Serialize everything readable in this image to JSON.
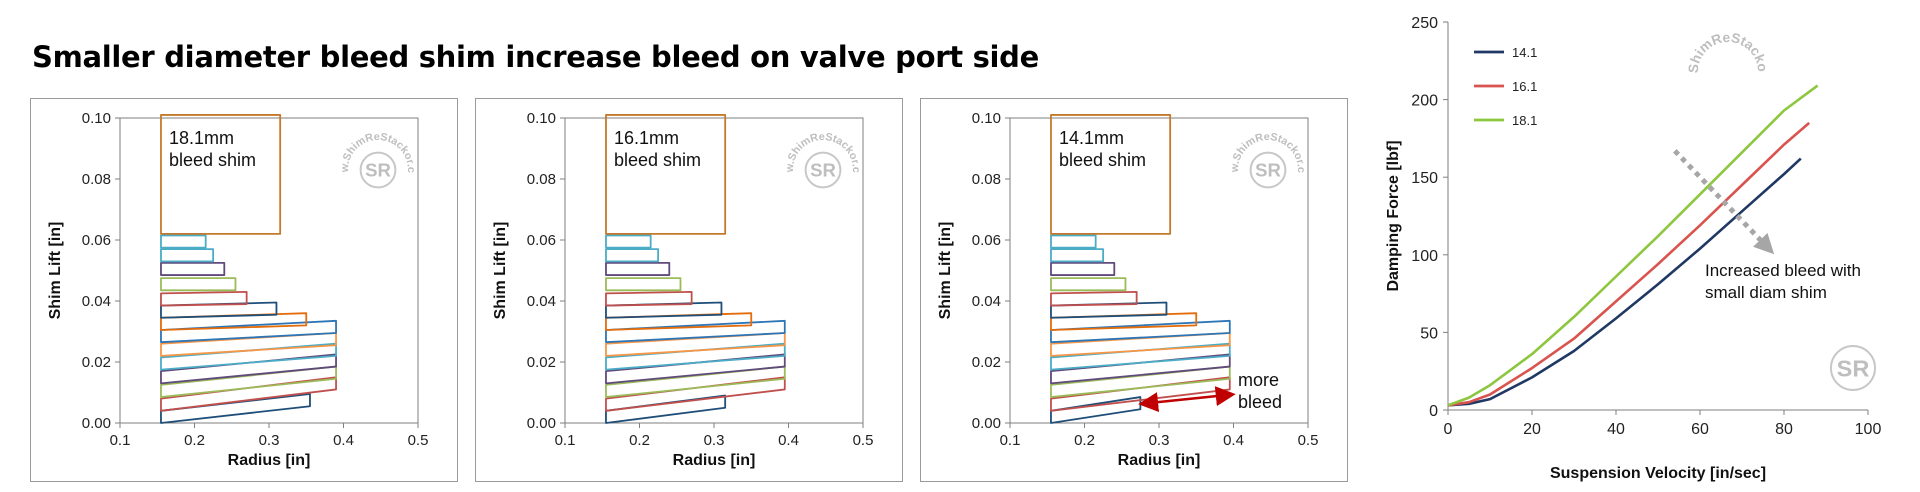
{
  "page": {
    "title": "Smaller diameter bleed shim increase bleed on valve port side"
  },
  "watermark": {
    "text": "www.ShimReStackor.com",
    "logo": "SR"
  },
  "chart_data": [
    {
      "type": "bar",
      "title": "",
      "annotation": "18.1mm bleed shim",
      "annotation_lines": [
        "18.1mm",
        "bleed shim"
      ],
      "xlabel": "Radius [in]",
      "ylabel": "Shim Lift [in]",
      "xlim": [
        0.1,
        0.5
      ],
      "ylim": [
        0,
        0.1
      ],
      "xticks": [
        "0.1",
        "0.2",
        "0.3",
        "0.4",
        "0.5"
      ],
      "yticks": [
        "0.00",
        "0.02",
        "0.04",
        "0.06",
        "0.08",
        "0.10"
      ],
      "inner_radius": 0.155,
      "shims": [
        {
          "r_out": 0.355,
          "y_in": 0.0,
          "y_out": 0.0055,
          "t": 0.004,
          "color": "#1f4e79"
        },
        {
          "r_out": 0.39,
          "y_in": 0.004,
          "y_out": 0.011,
          "t": 0.004,
          "color": "#c0504d"
        },
        {
          "r_out": 0.39,
          "y_in": 0.0085,
          "y_out": 0.0145,
          "t": 0.004,
          "color": "#9bbb59"
        },
        {
          "r_out": 0.39,
          "y_in": 0.013,
          "y_out": 0.0185,
          "t": 0.004,
          "color": "#604a7b"
        },
        {
          "r_out": 0.39,
          "y_in": 0.0175,
          "y_out": 0.022,
          "t": 0.004,
          "color": "#4bacc6"
        },
        {
          "r_out": 0.39,
          "y_in": 0.022,
          "y_out": 0.0255,
          "t": 0.004,
          "color": "#f79646"
        },
        {
          "r_out": 0.39,
          "y_in": 0.0265,
          "y_out": 0.0295,
          "t": 0.004,
          "color": "#2e75b6"
        },
        {
          "r_out": 0.35,
          "y_in": 0.0305,
          "y_out": 0.032,
          "t": 0.004,
          "color": "#e46c0a"
        },
        {
          "r_out": 0.31,
          "y_in": 0.0345,
          "y_out": 0.0355,
          "t": 0.004,
          "color": "#1f4e79"
        },
        {
          "r_out": 0.27,
          "y_in": 0.0385,
          "y_out": 0.039,
          "t": 0.004,
          "color": "#c0504d"
        },
        {
          "r_out": 0.255,
          "y_in": 0.0435,
          "y_out": 0.0435,
          "t": 0.004,
          "color": "#9bbb59"
        },
        {
          "r_out": 0.24,
          "y_in": 0.0485,
          "y_out": 0.0485,
          "t": 0.004,
          "color": "#604a7b"
        },
        {
          "r_out": 0.225,
          "y_in": 0.053,
          "y_out": 0.053,
          "t": 0.004,
          "color": "#4bacc6"
        },
        {
          "r_out": 0.215,
          "y_in": 0.0575,
          "y_out": 0.0575,
          "t": 0.004,
          "color": "#4bacc6"
        },
        {
          "r_out": 0.315,
          "y_in": 0.062,
          "y_out": 0.062,
          "t": 0.039,
          "color": "#c47a2c"
        }
      ]
    },
    {
      "type": "bar",
      "title": "",
      "annotation": "16.1mm bleed shim",
      "annotation_lines": [
        "16.1mm",
        "bleed shim"
      ],
      "xlabel": "Radius [in]",
      "ylabel": "Shim Lift [in]",
      "xlim": [
        0.1,
        0.5
      ],
      "ylim": [
        0,
        0.1
      ],
      "xticks": [
        "0.1",
        "0.2",
        "0.3",
        "0.4",
        "0.5"
      ],
      "yticks": [
        "0.00",
        "0.02",
        "0.04",
        "0.06",
        "0.08",
        "0.10"
      ],
      "inner_radius": 0.155,
      "shims": [
        {
          "r_out": 0.315,
          "y_in": 0.0,
          "y_out": 0.005,
          "t": 0.004,
          "color": "#1f4e79"
        },
        {
          "r_out": 0.395,
          "y_in": 0.004,
          "y_out": 0.011,
          "t": 0.004,
          "color": "#c0504d"
        },
        {
          "r_out": 0.395,
          "y_in": 0.0085,
          "y_out": 0.0145,
          "t": 0.004,
          "color": "#9bbb59"
        },
        {
          "r_out": 0.395,
          "y_in": 0.013,
          "y_out": 0.0185,
          "t": 0.004,
          "color": "#604a7b"
        },
        {
          "r_out": 0.395,
          "y_in": 0.0175,
          "y_out": 0.022,
          "t": 0.004,
          "color": "#4bacc6"
        },
        {
          "r_out": 0.395,
          "y_in": 0.022,
          "y_out": 0.0255,
          "t": 0.004,
          "color": "#f79646"
        },
        {
          "r_out": 0.395,
          "y_in": 0.0265,
          "y_out": 0.0295,
          "t": 0.004,
          "color": "#2e75b6"
        },
        {
          "r_out": 0.35,
          "y_in": 0.0305,
          "y_out": 0.032,
          "t": 0.004,
          "color": "#e46c0a"
        },
        {
          "r_out": 0.31,
          "y_in": 0.0345,
          "y_out": 0.0355,
          "t": 0.004,
          "color": "#1f4e79"
        },
        {
          "r_out": 0.27,
          "y_in": 0.0385,
          "y_out": 0.039,
          "t": 0.004,
          "color": "#c0504d"
        },
        {
          "r_out": 0.255,
          "y_in": 0.0435,
          "y_out": 0.0435,
          "t": 0.004,
          "color": "#9bbb59"
        },
        {
          "r_out": 0.24,
          "y_in": 0.0485,
          "y_out": 0.0485,
          "t": 0.004,
          "color": "#604a7b"
        },
        {
          "r_out": 0.225,
          "y_in": 0.053,
          "y_out": 0.053,
          "t": 0.004,
          "color": "#4bacc6"
        },
        {
          "r_out": 0.215,
          "y_in": 0.0575,
          "y_out": 0.0575,
          "t": 0.004,
          "color": "#4bacc6"
        },
        {
          "r_out": 0.315,
          "y_in": 0.062,
          "y_out": 0.062,
          "t": 0.039,
          "color": "#c47a2c"
        }
      ]
    },
    {
      "type": "bar",
      "title": "",
      "annotation": "14.1mm bleed shim",
      "annotation_lines": [
        "14.1mm",
        "bleed shim"
      ],
      "xlabel": "Radius [in]",
      "ylabel": "Shim Lift [in]",
      "xlim": [
        0.1,
        0.5
      ],
      "ylim": [
        0,
        0.1
      ],
      "xticks": [
        "0.1",
        "0.2",
        "0.3",
        "0.4",
        "0.5"
      ],
      "yticks": [
        "0.00",
        "0.02",
        "0.04",
        "0.06",
        "0.08",
        "0.10"
      ],
      "inner_radius": 0.155,
      "note": "more bleed",
      "note_lines": [
        "more",
        "bleed"
      ],
      "shims": [
        {
          "r_out": 0.275,
          "y_in": 0.0,
          "y_out": 0.0045,
          "t": 0.004,
          "color": "#1f4e79"
        },
        {
          "r_out": 0.395,
          "y_in": 0.004,
          "y_out": 0.011,
          "t": 0.004,
          "color": "#c0504d"
        },
        {
          "r_out": 0.395,
          "y_in": 0.0085,
          "y_out": 0.0145,
          "t": 0.004,
          "color": "#9bbb59"
        },
        {
          "r_out": 0.395,
          "y_in": 0.013,
          "y_out": 0.0185,
          "t": 0.004,
          "color": "#604a7b"
        },
        {
          "r_out": 0.395,
          "y_in": 0.0175,
          "y_out": 0.022,
          "t": 0.004,
          "color": "#4bacc6"
        },
        {
          "r_out": 0.395,
          "y_in": 0.022,
          "y_out": 0.0255,
          "t": 0.004,
          "color": "#f79646"
        },
        {
          "r_out": 0.395,
          "y_in": 0.0265,
          "y_out": 0.0295,
          "t": 0.004,
          "color": "#2e75b6"
        },
        {
          "r_out": 0.35,
          "y_in": 0.0305,
          "y_out": 0.032,
          "t": 0.004,
          "color": "#e46c0a"
        },
        {
          "r_out": 0.31,
          "y_in": 0.0345,
          "y_out": 0.0355,
          "t": 0.004,
          "color": "#1f4e79"
        },
        {
          "r_out": 0.27,
          "y_in": 0.0385,
          "y_out": 0.039,
          "t": 0.004,
          "color": "#c0504d"
        },
        {
          "r_out": 0.255,
          "y_in": 0.0435,
          "y_out": 0.0435,
          "t": 0.004,
          "color": "#9bbb59"
        },
        {
          "r_out": 0.24,
          "y_in": 0.0485,
          "y_out": 0.0485,
          "t": 0.004,
          "color": "#604a7b"
        },
        {
          "r_out": 0.225,
          "y_in": 0.053,
          "y_out": 0.053,
          "t": 0.004,
          "color": "#4bacc6"
        },
        {
          "r_out": 0.215,
          "y_in": 0.0575,
          "y_out": 0.0575,
          "t": 0.004,
          "color": "#4bacc6"
        },
        {
          "r_out": 0.315,
          "y_in": 0.062,
          "y_out": 0.062,
          "t": 0.039,
          "color": "#c47a2c"
        }
      ]
    },
    {
      "type": "line",
      "title": "",
      "xlabel": "Suspension Velocity [in/sec]",
      "ylabel": "Damping Force [lbf]",
      "xlim": [
        0,
        100
      ],
      "ylim": [
        0,
        250
      ],
      "xticks": [
        "0",
        "20",
        "40",
        "60",
        "80",
        "100"
      ],
      "yticks": [
        "0",
        "50",
        "100",
        "150",
        "200",
        "250"
      ],
      "legend": "top-left",
      "annotation": "Increased bleed with small diam shim",
      "annotation_lines": [
        "Increased bleed with",
        "small diam shim"
      ],
      "series": [
        {
          "name": "14.1",
          "color": "#1f3864",
          "x": [
            0,
            5,
            10,
            20,
            30,
            40,
            50,
            60,
            70,
            80,
            84
          ],
          "y": [
            3,
            4,
            7,
            21,
            38,
            59,
            81,
            104,
            128,
            152,
            162
          ]
        },
        {
          "name": "16.1",
          "color": "#d9534f",
          "x": [
            0,
            5,
            10,
            20,
            30,
            40,
            50,
            60,
            70,
            80,
            86
          ],
          "y": [
            3,
            5,
            10,
            27,
            46,
            70,
            94,
            119,
            145,
            171,
            185
          ]
        },
        {
          "name": "18.1",
          "color": "#8dc63f",
          "x": [
            0,
            5,
            10,
            20,
            30,
            40,
            50,
            60,
            70,
            80,
            88
          ],
          "y": [
            3,
            8,
            16,
            36,
            60,
            86,
            112,
            139,
            166,
            193,
            209
          ]
        }
      ]
    }
  ]
}
